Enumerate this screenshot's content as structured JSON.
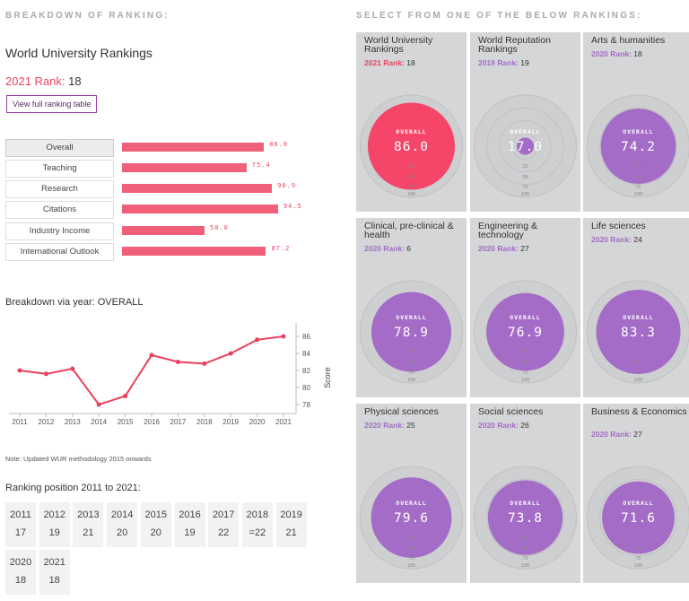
{
  "left": {
    "section_title": "BREAKDOWN OF RANKING:",
    "university_title": "World University Rankings",
    "rank_label": "2021 Rank:",
    "rank_value": "18",
    "view_button": "View full ranking table",
    "breakdown": [
      {
        "label": "Overall",
        "value": 86.0,
        "display": "86.0"
      },
      {
        "label": "Teaching",
        "value": 75.4,
        "display": "75.4"
      },
      {
        "label": "Research",
        "value": 90.9,
        "display": "90.9"
      },
      {
        "label": "Citations",
        "value": 94.5,
        "display": "94.5"
      },
      {
        "label": "Industry Income",
        "value": 50.0,
        "display": "50.0"
      },
      {
        "label": "International Outlook",
        "value": 87.2,
        "display": "87.2"
      }
    ],
    "breakdown_year_title": "Breakdown via year: OVERALL",
    "note": "Note: Updated WUR methodology 2015 onwards",
    "ranking_position_title": "Ranking position 2011 to 2021:",
    "ranking_positions": [
      {
        "year": "2011",
        "rank": "17"
      },
      {
        "year": "2012",
        "rank": "19"
      },
      {
        "year": "2013",
        "rank": "21"
      },
      {
        "year": "2014",
        "rank": "20"
      },
      {
        "year": "2015",
        "rank": "20"
      },
      {
        "year": "2016",
        "rank": "19"
      },
      {
        "year": "2017",
        "rank": "22"
      },
      {
        "year": "2018",
        "rank": "=22"
      },
      {
        "year": "2019",
        "rank": "21"
      },
      {
        "year": "2020",
        "rank": "18"
      },
      {
        "year": "2021",
        "rank": "18"
      }
    ]
  },
  "chart_data": {
    "type": "line",
    "x": [
      "2011",
      "2012",
      "2013",
      "2014",
      "2015",
      "2016",
      "2017",
      "2018",
      "2019",
      "2020",
      "2021"
    ],
    "series": [
      {
        "values": [
          82.0,
          81.6,
          82.2,
          78.0,
          79.0,
          83.8,
          83.0,
          82.8,
          84.0,
          85.6,
          86.0
        ]
      }
    ],
    "ylabel": "Score",
    "yticks": [
      78,
      80,
      82,
      84,
      86
    ],
    "ylim": [
      77.5,
      87
    ],
    "grid": false,
    "line_color": "#e8405e"
  },
  "right": {
    "section_title": "SELECT FROM ONE OF THE BELOW RANKINGS:",
    "overall_label": "OVERALL",
    "ticks": [
      "25",
      "50",
      "75",
      "100"
    ],
    "panels": [
      {
        "name": "World University Rankings",
        "rank_label": "2021 Rank:",
        "rank": "18",
        "score": "86.0",
        "color": "#f5466a",
        "label_color": "#e84661",
        "selected": true
      },
      {
        "name": "World Reputation Rankings",
        "rank_label": "2019 Rank:",
        "rank": "19",
        "score": "17.0",
        "color": "#a46cc6",
        "label_color": "#a46cc6",
        "selected": false
      },
      {
        "name": "Arts & humanities",
        "rank_label": "2020 Rank:",
        "rank": "18",
        "score": "74.2",
        "color": "#a46cc6",
        "label_color": "#a46cc6",
        "selected": false
      },
      {
        "name": "Clinical, pre-clinical & health",
        "rank_label": "2020 Rank:",
        "rank": "6",
        "score": "78.9",
        "color": "#a46cc6",
        "label_color": "#a46cc6",
        "selected": false
      },
      {
        "name": "Engineering & technology",
        "rank_label": "2020 Rank:",
        "rank": "27",
        "score": "76.9",
        "color": "#a46cc6",
        "label_color": "#a46cc6",
        "selected": false
      },
      {
        "name": "Life sciences",
        "rank_label": "2020 Rank:",
        "rank": "24",
        "score": "83.3",
        "color": "#a46cc6",
        "label_color": "#a46cc6",
        "selected": false
      },
      {
        "name": "Physical sciences",
        "rank_label": "2020 Rank:",
        "rank": "25",
        "score": "79.6",
        "color": "#a46cc6",
        "label_color": "#a46cc6",
        "selected": false
      },
      {
        "name": "Social sciences",
        "rank_label": "2020 Rank:",
        "rank": "26",
        "score": "73.8",
        "color": "#a46cc6",
        "label_color": "#a46cc6",
        "selected": false
      },
      {
        "name": "Business & Economics",
        "rank_label": "2020 Rank:",
        "rank": "27",
        "score": "71.6",
        "color": "#a46cc6",
        "label_color": "#a46cc6",
        "selected": false
      }
    ]
  }
}
